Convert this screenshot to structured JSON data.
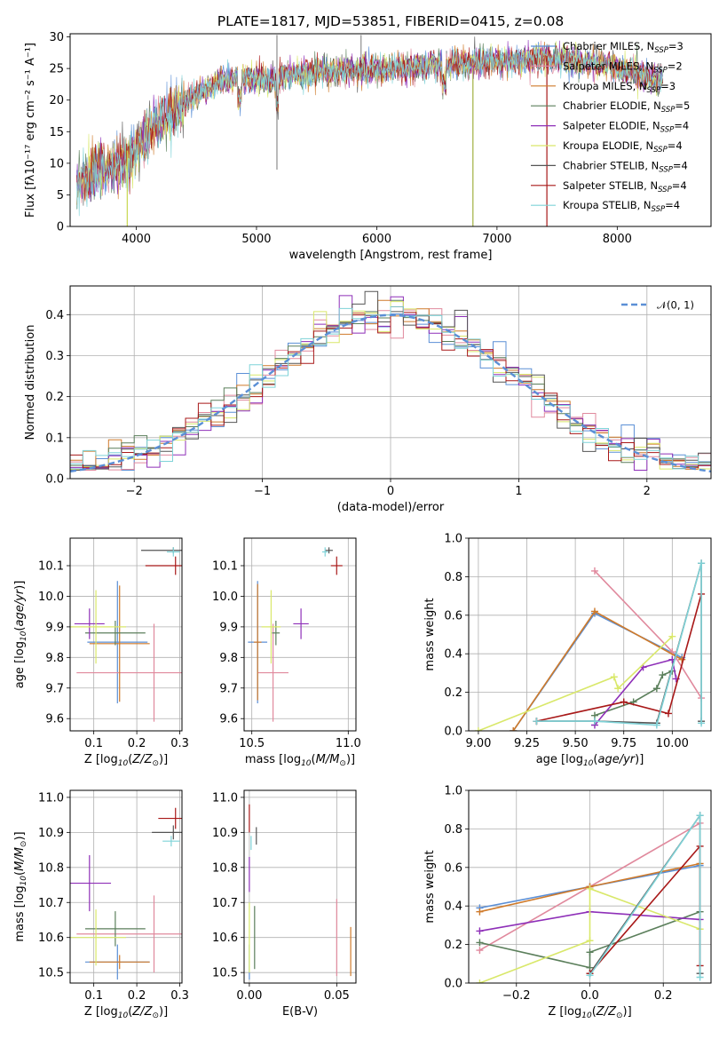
{
  "figure": {
    "title": "PLATE=1817, MJD=53851, FIBERID=0415, z=0.08"
  },
  "colors": {
    "Chabrier MILES": "#5b8fd6",
    "Salpeter MILES": "#e0899d",
    "Kroupa MILES": "#cf7a2a",
    "Chabrier ELODIE": "#5b7f5b",
    "Salpeter ELODIE": "#8e2fb8",
    "Kroupa ELODIE": "#d9e86a",
    "Chabrier STELIB": "#555555",
    "Salpeter STELIB": "#a81818",
    "Kroupa STELIB": "#7fd3d8"
  },
  "chart_data": [
    {
      "id": "spectrum",
      "type": "line",
      "title": "PLATE=1817, MJD=53851, FIBERID=0415, z=0.08",
      "xlabel": "wavelength [Angstrom, rest frame]",
      "ylabel": "Flux [fλ10⁻¹⁷ erg cm⁻² s⁻¹ A⁻¹]",
      "xlim": [
        3450,
        8780
      ],
      "ylim": [
        0,
        30.5
      ],
      "xticks": [
        4000,
        5000,
        6000,
        7000,
        8000
      ],
      "yticks": [
        0,
        5,
        10,
        15,
        20,
        25,
        30
      ],
      "grid": false,
      "legend_position": "upper right",
      "continuum": {
        "x": [
          3500,
          3700,
          3850,
          3950,
          4100,
          4300,
          4500,
          4700,
          4900,
          5100,
          5300,
          5500,
          5700,
          5900,
          6100,
          6300,
          6500,
          6700,
          6900,
          7100,
          7300,
          7500,
          7700,
          7900,
          8100,
          8300
        ],
        "y": [
          7,
          9,
          10,
          10.5,
          15,
          18,
          21,
          23,
          23.5,
          23,
          24,
          24.5,
          24.5,
          24.8,
          25,
          25.3,
          25.6,
          25.8,
          26,
          26.2,
          26.5,
          26.6,
          26,
          25.5,
          24.5,
          23.5
        ]
      },
      "series": [
        {
          "name": "Chabrier MILES, N$_{SSP}$=3"
        },
        {
          "name": "Salpeter MILES, N$_{SSP}$=2"
        },
        {
          "name": "Kroupa MILES, N$_{SSP}$=3"
        },
        {
          "name": "Chabrier ELODIE, N$_{SSP}$=5"
        },
        {
          "name": "Salpeter ELODIE, N$_{SSP}$=4"
        },
        {
          "name": "Kroupa ELODIE, N$_{SSP}$=4"
        },
        {
          "name": "Chabrier STELIB, N$_{SSP}$=4"
        },
        {
          "name": "Salpeter STELIB, N$_{SSP}$=4"
        },
        {
          "name": "Kroupa STELIB, N$_{SSP}$=4"
        }
      ]
    },
    {
      "id": "residuals",
      "type": "histogram",
      "xlabel": "(data-model)/error",
      "ylabel": "Normed distribution",
      "xlim": [
        -2.5,
        2.5
      ],
      "ylim": [
        0,
        0.47
      ],
      "xticks": [
        -2,
        -1,
        0,
        1,
        2
      ],
      "yticks": [
        0.0,
        0.1,
        0.2,
        0.3,
        0.4
      ],
      "grid": true,
      "legend": "$\\mathcal{N}(0,1)$",
      "legend_position": "upper right",
      "reference_curve": "normal pdf, mean 0, sigma 1",
      "bin_width": 0.1
    },
    {
      "id": "age_vs_Z",
      "type": "errorbar",
      "xlabel": "Z [log$_{10}$($Z/Z_\\odot$)]",
      "ylabel": "age  [log$_{10}$($age/yr$)]",
      "xlim": [
        0.045,
        0.305
      ],
      "ylim": [
        9.56,
        10.19
      ],
      "xticks": [
        0.1,
        0.2,
        0.3
      ],
      "yticks": [
        9.6,
        9.7,
        9.8,
        9.9,
        10.0,
        10.1
      ],
      "grid": true,
      "points": [
        {
          "model": "Chabrier MILES",
          "x": 0.155,
          "y": 9.85,
          "xerr": 0.07,
          "yerr": 0.2
        },
        {
          "model": "Salpeter MILES",
          "x": 0.24,
          "y": 9.75,
          "xerr": 0.18,
          "yerr": 0.16
        },
        {
          "model": "Kroupa MILES",
          "x": 0.16,
          "y": 9.845,
          "xerr": 0.07,
          "yerr": 0.19
        },
        {
          "model": "Chabrier ELODIE",
          "x": 0.15,
          "y": 9.88,
          "xerr": 0.07,
          "yerr": 0.04
        },
        {
          "model": "Salpeter ELODIE",
          "x": 0.09,
          "y": 9.91,
          "xerr": 0.035,
          "yerr": 0.05
        },
        {
          "model": "Kroupa ELODIE",
          "x": 0.105,
          "y": 9.9,
          "xerr": 0.07,
          "yerr": 0.12
        },
        {
          "model": "Chabrier STELIB",
          "x": 0.285,
          "y": 10.15,
          "xerr": 0.075,
          "yerr": 0.01
        },
        {
          "model": "Salpeter STELIB",
          "x": 0.29,
          "y": 10.1,
          "xerr": 0.07,
          "yerr": 0.03
        },
        {
          "model": "Kroupa STELIB",
          "x": 0.285,
          "y": 10.145,
          "xerr": 0.015,
          "yerr": 0.015
        }
      ]
    },
    {
      "id": "age_vs_mass",
      "type": "errorbar",
      "xlabel": "mass [log$_{10}$($M/M_\\odot$)]",
      "ylabel": "",
      "xlim": [
        10.46,
        11.04
      ],
      "ylim": [
        9.56,
        10.19
      ],
      "xticks": [
        10.5,
        11.0
      ],
      "yticks": [
        9.6,
        9.7,
        9.8,
        9.9,
        10.0,
        10.1
      ],
      "grid": true,
      "points": [
        {
          "model": "Chabrier MILES",
          "x": 10.53,
          "y": 9.85,
          "xerr": 0.05,
          "yerr": 0.2
        },
        {
          "model": "Salpeter MILES",
          "x": 10.61,
          "y": 9.75,
          "xerr": 0.08,
          "yerr": 0.16
        },
        {
          "model": "Kroupa MILES",
          "x": 10.53,
          "y": 9.85,
          "xerr": 0.02,
          "yerr": 0.19
        },
        {
          "model": "Chabrier ELODIE",
          "x": 10.625,
          "y": 9.88,
          "xerr": 0.02,
          "yerr": 0.04
        },
        {
          "model": "Salpeter ELODIE",
          "x": 10.755,
          "y": 9.91,
          "xerr": 0.04,
          "yerr": 0.05
        },
        {
          "model": "Kroupa ELODIE",
          "x": 10.6,
          "y": 9.9,
          "xerr": 0.05,
          "yerr": 0.12
        },
        {
          "model": "Chabrier STELIB",
          "x": 10.9,
          "y": 10.15,
          "xerr": 0.02,
          "yerr": 0.01
        },
        {
          "model": "Salpeter STELIB",
          "x": 10.94,
          "y": 10.1,
          "xerr": 0.03,
          "yerr": 0.03
        },
        {
          "model": "Kroupa STELIB",
          "x": 10.88,
          "y": 10.145,
          "xerr": 0.015,
          "yerr": 0.015
        }
      ]
    },
    {
      "id": "weight_vs_age",
      "type": "line",
      "xlabel": "age  [log$_{10}$($age/yr$)]",
      "ylabel": "mass weight",
      "xlim": [
        8.95,
        10.2
      ],
      "ylim": [
        0,
        1.0
      ],
      "xticks": [
        9.0,
        9.25,
        9.5,
        9.75,
        10.0
      ],
      "yticks": [
        0.0,
        0.2,
        0.4,
        0.6,
        0.8,
        1.0
      ],
      "grid": true,
      "series": [
        {
          "model": "Chabrier MILES",
          "x": [
            9.18,
            9.6,
            10.05
          ],
          "y": [
            0.0,
            0.61,
            0.38
          ]
        },
        {
          "model": "Salpeter MILES",
          "x": [
            9.6,
            10.0,
            10.15
          ],
          "y": [
            0.83,
            0.41,
            0.17
          ]
        },
        {
          "model": "Kroupa MILES",
          "x": [
            9.18,
            9.6,
            10.05
          ],
          "y": [
            0.0,
            0.62,
            0.37
          ]
        },
        {
          "model": "Chabrier ELODIE",
          "x": [
            9.6,
            9.8,
            9.92,
            9.95,
            10.0
          ],
          "y": [
            0.08,
            0.15,
            0.22,
            0.29,
            0.31
          ]
        },
        {
          "model": "Salpeter ELODIE",
          "x": [
            9.6,
            9.85,
            10.0,
            10.02
          ],
          "y": [
            0.03,
            0.33,
            0.37,
            0.27
          ]
        },
        {
          "model": "Kroupa ELODIE",
          "x": [
            9.0,
            9.7,
            9.72,
            10.0
          ],
          "y": [
            0.0,
            0.28,
            0.22,
            0.49
          ]
        },
        {
          "model": "Chabrier STELIB",
          "x": [
            9.3,
            9.6,
            9.92,
            10.15,
            10.15
          ],
          "y": [
            0.05,
            0.05,
            0.04,
            0.87,
            0.05
          ]
        },
        {
          "model": "Salpeter STELIB",
          "x": [
            9.3,
            9.75,
            9.98,
            10.15
          ],
          "y": [
            0.05,
            0.15,
            0.09,
            0.71
          ]
        },
        {
          "model": "Kroupa STELIB",
          "x": [
            9.3,
            9.6,
            9.92,
            10.15,
            10.15
          ],
          "y": [
            0.05,
            0.05,
            0.03,
            0.87,
            0.04
          ]
        }
      ]
    },
    {
      "id": "mass_vs_Z",
      "type": "errorbar",
      "xlabel": "Z [log$_{10}$($Z/Z_\\odot$)]",
      "ylabel": "mass [log$_{10}$($M/M_\\odot$)]",
      "xlim": [
        0.045,
        0.305
      ],
      "ylim": [
        10.47,
        11.02
      ],
      "xticks": [
        0.1,
        0.2,
        0.3
      ],
      "yticks": [
        10.5,
        10.6,
        10.7,
        10.8,
        10.9,
        11.0
      ],
      "grid": true,
      "points": [
        {
          "model": "Chabrier MILES",
          "x": 0.155,
          "y": 10.53,
          "xerr": 0.075,
          "yerr": 0.05
        },
        {
          "model": "Salpeter MILES",
          "x": 0.24,
          "y": 10.61,
          "xerr": 0.18,
          "yerr": 0.11
        },
        {
          "model": "Kroupa MILES",
          "x": 0.16,
          "y": 10.53,
          "xerr": 0.07,
          "yerr": 0.02
        },
        {
          "model": "Chabrier ELODIE",
          "x": 0.15,
          "y": 10.625,
          "xerr": 0.07,
          "yerr": 0.05
        },
        {
          "model": "Salpeter ELODIE",
          "x": 0.09,
          "y": 10.755,
          "xerr": 0.05,
          "yerr": 0.08
        },
        {
          "model": "Kroupa ELODIE",
          "x": 0.105,
          "y": 10.6,
          "xerr": 0.07,
          "yerr": 0.08
        },
        {
          "model": "Chabrier STELIB",
          "x": 0.285,
          "y": 10.9,
          "xerr": 0.05,
          "yerr": 0.02
        },
        {
          "model": "Salpeter STELIB",
          "x": 0.29,
          "y": 10.94,
          "xerr": 0.04,
          "yerr": 0.03
        },
        {
          "model": "Kroupa STELIB",
          "x": 0.28,
          "y": 10.875,
          "xerr": 0.02,
          "yerr": 0.015
        }
      ]
    },
    {
      "id": "mass_vs_EBV",
      "type": "errorbar",
      "xlabel": "E(B-V)",
      "ylabel": "",
      "xlim": [
        -0.003,
        0.061
      ],
      "ylim": [
        10.47,
        11.02
      ],
      "xticks": [
        0.0,
        0.05
      ],
      "yticks": [
        10.5,
        10.6,
        10.7,
        10.8,
        10.9,
        11.0
      ],
      "grid": true,
      "points": [
        {
          "model": "Chabrier MILES",
          "x": 0.0,
          "y": 10.53,
          "xerr": 0.0,
          "yerr": 0.05
        },
        {
          "model": "Salpeter MILES",
          "x": 0.05,
          "y": 10.6,
          "xerr": 0.0,
          "yerr": 0.11
        },
        {
          "model": "Kroupa MILES",
          "x": 0.058,
          "y": 10.56,
          "xerr": 0.0,
          "yerr": 0.07
        },
        {
          "model": "Chabrier ELODIE",
          "x": 0.003,
          "y": 10.6,
          "xerr": 0.0,
          "yerr": 0.09
        },
        {
          "model": "Salpeter ELODIE",
          "x": 0.0,
          "y": 10.78,
          "xerr": 0.0,
          "yerr": 0.05
        },
        {
          "model": "Kroupa ELODIE",
          "x": 0.0,
          "y": 10.6,
          "xerr": 0.0,
          "yerr": 0.1
        },
        {
          "model": "Chabrier STELIB",
          "x": 0.004,
          "y": 10.89,
          "xerr": 0.0,
          "yerr": 0.025
        },
        {
          "model": "Salpeter STELIB",
          "x": 0.0,
          "y": 10.94,
          "xerr": 0.0,
          "yerr": 0.04
        },
        {
          "model": "Kroupa STELIB",
          "x": 0.001,
          "y": 10.87,
          "xerr": 0.0,
          "yerr": 0.02
        }
      ]
    },
    {
      "id": "weight_vs_Z",
      "type": "line",
      "xlabel": "Z [log$_{10}$($Z/Z_\\odot$)]",
      "ylabel": "mass weight",
      "xlim": [
        -0.33,
        0.33
      ],
      "ylim": [
        0,
        1.0
      ],
      "xticks": [
        -0.2,
        0.0,
        0.2
      ],
      "yticks": [
        0.0,
        0.2,
        0.4,
        0.6,
        0.8,
        1.0
      ],
      "grid": true,
      "series": [
        {
          "model": "Chabrier MILES",
          "x": [
            -0.3,
            0.0,
            0.3
          ],
          "y": [
            0.39,
            0.5,
            0.61
          ]
        },
        {
          "model": "Salpeter MILES",
          "x": [
            -0.3,
            0.0,
            0.3
          ],
          "y": [
            0.17,
            0.5,
            0.83
          ]
        },
        {
          "model": "Kroupa MILES",
          "x": [
            -0.3,
            0.0,
            0.3
          ],
          "y": [
            0.37,
            0.5,
            0.62
          ]
        },
        {
          "model": "Chabrier ELODIE",
          "x": [
            -0.3,
            0.0,
            0.0,
            0.3
          ],
          "y": [
            0.21,
            0.08,
            0.16,
            0.37
          ]
        },
        {
          "model": "Salpeter ELODIE",
          "x": [
            -0.3,
            0.0,
            0.3
          ],
          "y": [
            0.27,
            0.37,
            0.33
          ]
        },
        {
          "model": "Kroupa ELODIE",
          "x": [
            -0.3,
            0.0,
            0.0,
            0.3
          ],
          "y": [
            0.0,
            0.22,
            0.49,
            0.28
          ]
        },
        {
          "model": "Chabrier STELIB",
          "x": [
            0.0,
            0.3,
            0.3
          ],
          "y": [
            0.05,
            0.87,
            0.05
          ]
        },
        {
          "model": "Salpeter STELIB",
          "x": [
            0.0,
            0.3,
            0.3
          ],
          "y": [
            0.05,
            0.71,
            0.09
          ]
        },
        {
          "model": "Kroupa STELIB",
          "x": [
            0.0,
            0.3,
            0.3
          ],
          "y": [
            0.04,
            0.87,
            0.03
          ]
        }
      ]
    }
  ]
}
